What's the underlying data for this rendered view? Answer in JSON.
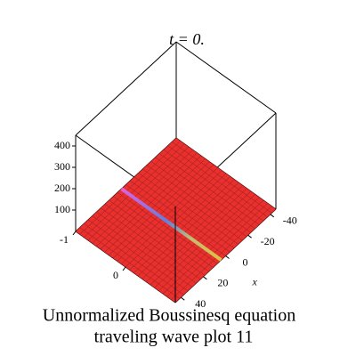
{
  "chart_data": {
    "type": "surface3d",
    "title": "t = 0.",
    "caption": [
      "Unnormalized Boussinesq equation",
      "traveling wave plot 11"
    ],
    "x_label": "x",
    "xlim": [
      -45,
      45
    ],
    "ylim": [
      -1,
      1
    ],
    "zlim": [
      0,
      450
    ],
    "xticks": [
      -40,
      -20,
      0,
      20,
      40
    ],
    "yticks": [
      -1,
      0
    ],
    "zticks": [
      100,
      200,
      300,
      400
    ],
    "surface_z": 0,
    "surface_color": "#e8312f",
    "ridge_x": 4
  }
}
